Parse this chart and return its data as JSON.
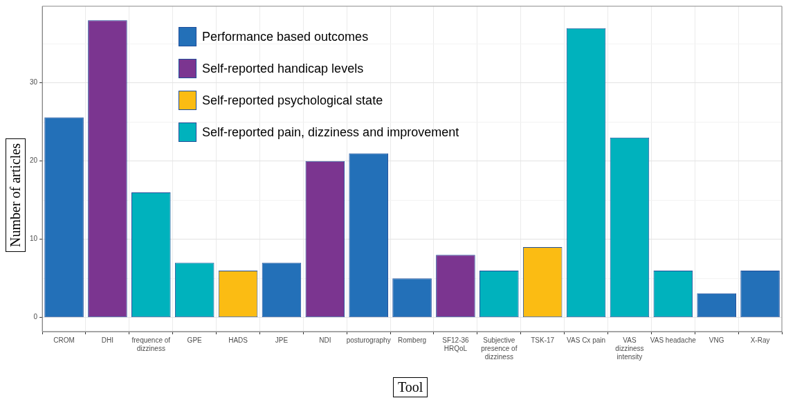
{
  "chart_data": {
    "type": "bar",
    "xlabel": "Tool",
    "ylabel": "Number of articles",
    "categories": [
      "CROM",
      "DHI",
      "frequence of dizziness",
      "GPE",
      "HADS",
      "JPE",
      "NDI",
      "posturography",
      "Romberg",
      "SF12-36 HRQoL",
      "Subjective presence of dizziness",
      "TSK-17",
      "VAS Cx pain",
      "VAS dizziness intensity",
      "VAS headache",
      "VNG",
      "X-Ray"
    ],
    "series": [
      {
        "name": "Performance based outcomes",
        "color": "#2370b8",
        "values": [
          25.6,
          null,
          null,
          null,
          null,
          7,
          null,
          21,
          5,
          null,
          null,
          null,
          null,
          null,
          null,
          3.1,
          6
        ]
      },
      {
        "name": "Self-reported handicap levels",
        "color": "#7b3590",
        "values": [
          null,
          38,
          null,
          null,
          null,
          null,
          20,
          null,
          null,
          8,
          null,
          null,
          null,
          null,
          null,
          null,
          null
        ]
      },
      {
        "name": "Self-reported psychological state",
        "color": "#fbbc13",
        "values": [
          null,
          null,
          null,
          null,
          6,
          null,
          null,
          null,
          null,
          null,
          null,
          9,
          null,
          null,
          null,
          null,
          null
        ]
      },
      {
        "name": "Self-reported pain, dizziness and improvement",
        "color": "#00b2bd",
        "values": [
          null,
          null,
          16,
          7,
          null,
          null,
          null,
          null,
          null,
          null,
          6,
          null,
          37,
          23,
          6,
          null,
          null
        ]
      }
    ],
    "ylim": [
      -1.8,
      39.8
    ],
    "yticks": [
      0,
      {
        "value": 5,
        "label": null
      },
      10,
      {
        "value": 15,
        "label": null
      },
      20,
      {
        "value": 25,
        "label": null
      },
      30,
      {
        "value": 35,
        "label": null
      }
    ],
    "grid": true,
    "legend": "top left"
  }
}
